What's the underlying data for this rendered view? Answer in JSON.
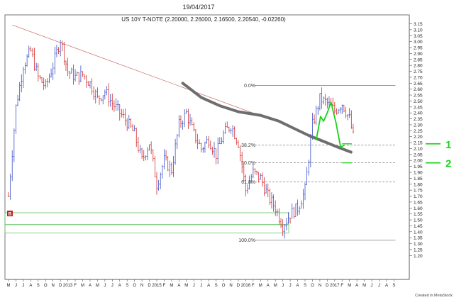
{
  "page": {
    "date": "19/04/2017",
    "title": "US 10Y T-NOTE (2.20000, 2.26000, 2.16500, 2.20540, -0.02260)",
    "credit": "Created in MetaStock",
    "marker": "B"
  },
  "colors": {
    "up_bar": "#3a4fc8",
    "down_bar": "#d42a2a",
    "trendline": "#c86464",
    "ma_curve": "#6e6e6e",
    "fib_line": "#606060",
    "box": "#66c266",
    "projection": "#18d418",
    "marker": "#c02020"
  },
  "chart_data": {
    "type": "ohlc",
    "instrument": "US 10Y T-NOTE",
    "ylim": [
      1.2,
      3.15
    ],
    "y_ticks": [
      "3.15",
      "3.10",
      "3.05",
      "3.00",
      "2.95",
      "2.90",
      "2.85",
      "2.80",
      "2.75",
      "2.70",
      "2.65",
      "2.60",
      "2.55",
      "2.50",
      "2.45",
      "2.40",
      "2.35",
      "2.30",
      "2.25",
      "2.20",
      "2.15",
      "2.10",
      "2.05",
      "2.00",
      "1.95",
      "1.90",
      "1.85",
      "1.80",
      "1.75",
      "1.70",
      "1.65",
      "1.60",
      "1.55",
      "1.50",
      "1.45",
      "1.40",
      "1.35",
      "1.30",
      "1.25",
      "1.20"
    ],
    "x_ticks": [
      {
        "label": "M",
        "i": 0
      },
      {
        "label": "J",
        "i": 1
      },
      {
        "label": "J",
        "i": 2
      },
      {
        "label": "A",
        "i": 3
      },
      {
        "label": "S",
        "i": 4
      },
      {
        "label": "O",
        "i": 5
      },
      {
        "label": "N",
        "i": 6
      },
      {
        "label": "D",
        "i": 7
      },
      {
        "label": "2013",
        "i": 8
      },
      {
        "label": "F",
        "i": 9
      },
      {
        "label": "M",
        "i": 10
      },
      {
        "label": "A",
        "i": 11
      },
      {
        "label": "M",
        "i": 12
      },
      {
        "label": "J",
        "i": 13
      },
      {
        "label": "J",
        "i": 14
      },
      {
        "label": "A",
        "i": 15
      },
      {
        "label": "S",
        "i": 16
      },
      {
        "label": "O",
        "i": 17
      },
      {
        "label": "N",
        "i": 18
      },
      {
        "label": "D",
        "i": 19
      },
      {
        "label": "2015",
        "i": 20
      },
      {
        "label": "F",
        "i": 21
      },
      {
        "label": "M",
        "i": 22
      },
      {
        "label": "A",
        "i": 23
      },
      {
        "label": "M",
        "i": 24
      },
      {
        "label": "J",
        "i": 25
      },
      {
        "label": "J",
        "i": 26
      },
      {
        "label": "A",
        "i": 27
      },
      {
        "label": "S",
        "i": 28
      },
      {
        "label": "O",
        "i": 29
      },
      {
        "label": "N",
        "i": 30
      },
      {
        "label": "D",
        "i": 31
      },
      {
        "label": "2016",
        "i": 32
      },
      {
        "label": "F",
        "i": 33
      },
      {
        "label": "M",
        "i": 34
      },
      {
        "label": "A",
        "i": 35
      },
      {
        "label": "M",
        "i": 36
      },
      {
        "label": "J",
        "i": 37
      },
      {
        "label": "J",
        "i": 38
      },
      {
        "label": "A",
        "i": 39
      },
      {
        "label": "S",
        "i": 40
      },
      {
        "label": "O",
        "i": 41
      },
      {
        "label": "N",
        "i": 42
      },
      {
        "label": "D",
        "i": 43
      },
      {
        "label": "2017",
        "i": 44
      },
      {
        "label": "F",
        "i": 45
      },
      {
        "label": "M",
        "i": 46
      },
      {
        "label": "A",
        "i": 47
      },
      {
        "label": "M",
        "i": 48
      },
      {
        "label": "J",
        "i": 49
      },
      {
        "label": "J",
        "i": 50
      },
      {
        "label": "A",
        "i": 51
      },
      {
        "label": "S",
        "i": 52
      }
    ],
    "fib_levels": [
      {
        "label": "0.0%",
        "value": 2.63
      },
      {
        "label": "38.2%",
        "value": 2.13
      },
      {
        "label": "50.0%",
        "value": 1.98
      },
      {
        "label": "61.8%",
        "value": 1.82
      },
      {
        "label": "100.0%",
        "value": 1.33
      }
    ],
    "boxes": [
      {
        "x_from": 0.0,
        "x_to": 37.8,
        "y_from": 1.46,
        "y_to": 1.56
      },
      {
        "x_from": 0.0,
        "x_to": 37.8,
        "y_from": 1.39,
        "y_to": 1.46
      }
    ],
    "trendline": [
      {
        "x": 0.5,
        "y": 3.14
      },
      {
        "x": 36.0,
        "y": 2.33
      }
    ],
    "moving_average": [
      {
        "x": 23.5,
        "y": 2.65
      },
      {
        "x": 26.0,
        "y": 2.53
      },
      {
        "x": 28.5,
        "y": 2.46
      },
      {
        "x": 31.0,
        "y": 2.41
      },
      {
        "x": 34.0,
        "y": 2.38
      },
      {
        "x": 36.5,
        "y": 2.33
      },
      {
        "x": 38.5,
        "y": 2.27
      },
      {
        "x": 40.5,
        "y": 2.21
      },
      {
        "x": 42.5,
        "y": 2.16
      },
      {
        "x": 44.5,
        "y": 2.11
      },
      {
        "x": 46.2,
        "y": 2.07
      }
    ],
    "projection": [
      {
        "x": 41.5,
        "y": 2.17
      },
      {
        "x": 42.1,
        "y": 2.37
      },
      {
        "x": 42.5,
        "y": 2.33
      },
      {
        "x": 43.0,
        "y": 2.4
      },
      {
        "x": 43.5,
        "y": 2.49
      },
      {
        "x": 44.2,
        "y": 2.31
      },
      {
        "x": 44.8,
        "y": 2.11
      },
      {
        "x": 45.3,
        "y": 2.13
      }
    ],
    "target_labels": [
      {
        "label": "1",
        "value": 2.14
      },
      {
        "label": "2",
        "value": 1.98
      }
    ],
    "price_anchors": [
      {
        "i": 0,
        "v": 1.7
      },
      {
        "i": 1,
        "v": 2.45
      },
      {
        "i": 2,
        "v": 2.8
      },
      {
        "i": 3,
        "v": 2.92
      },
      {
        "i": 4,
        "v": 2.7
      },
      {
        "i": 5,
        "v": 2.62
      },
      {
        "i": 6,
        "v": 2.8
      },
      {
        "i": 7,
        "v": 3.02
      },
      {
        "i": 8,
        "v": 2.75
      },
      {
        "i": 9,
        "v": 2.7
      },
      {
        "i": 10,
        "v": 2.72
      },
      {
        "i": 11,
        "v": 2.65
      },
      {
        "i": 12,
        "v": 2.52
      },
      {
        "i": 13,
        "v": 2.58
      },
      {
        "i": 14,
        "v": 2.48
      },
      {
        "i": 15,
        "v": 2.4
      },
      {
        "i": 16,
        "v": 2.32
      },
      {
        "i": 17,
        "v": 2.22
      },
      {
        "i": 18,
        "v": 2.0
      },
      {
        "i": 19,
        "v": 2.15
      },
      {
        "i": 20,
        "v": 1.8
      },
      {
        "i": 21,
        "v": 2.0
      },
      {
        "i": 22,
        "v": 1.92
      },
      {
        "i": 23,
        "v": 2.3
      },
      {
        "i": 24,
        "v": 2.4
      },
      {
        "i": 25,
        "v": 2.22
      },
      {
        "i": 26,
        "v": 2.1
      },
      {
        "i": 27,
        "v": 2.18
      },
      {
        "i": 28,
        "v": 2.05
      },
      {
        "i": 29,
        "v": 2.22
      },
      {
        "i": 30,
        "v": 2.3
      },
      {
        "i": 31,
        "v": 2.15
      },
      {
        "i": 32,
        "v": 1.75
      },
      {
        "i": 33,
        "v": 1.9
      },
      {
        "i": 34,
        "v": 1.85
      },
      {
        "i": 35,
        "v": 1.7
      },
      {
        "i": 36,
        "v": 1.6
      },
      {
        "i": 37,
        "v": 1.45
      },
      {
        "i": 38,
        "v": 1.55
      },
      {
        "i": 39,
        "v": 1.6
      },
      {
        "i": 40,
        "v": 1.75
      },
      {
        "i": 41,
        "v": 2.3
      },
      {
        "i": 42,
        "v": 2.52
      },
      {
        "i": 43,
        "v": 2.48
      },
      {
        "i": 44,
        "v": 2.42
      },
      {
        "i": 45,
        "v": 2.48
      },
      {
        "i": 46,
        "v": 2.35
      },
      {
        "i": 46.5,
        "v": 2.2
      }
    ]
  }
}
